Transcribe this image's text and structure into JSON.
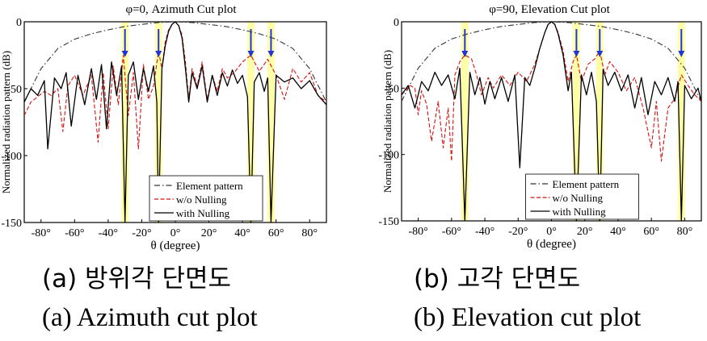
{
  "chart_data": [
    {
      "type": "line",
      "title": "φ=0, Azimuth Cut plot",
      "ylabel": "Normalized radiation pattern (dB)",
      "xlabel": "θ (degree)",
      "xlim": [
        -90,
        90
      ],
      "ylim": [
        -150,
        0
      ],
      "xticks": [
        "-80°",
        "-60°",
        "-40°",
        "-20°",
        "0°",
        "20°",
        "40°",
        "60°",
        "80°"
      ],
      "xtick_values": [
        -80,
        -60,
        -40,
        -20,
        0,
        20,
        40,
        60,
        80
      ],
      "yticks": [
        "0",
        "-50",
        "-100",
        "-150"
      ],
      "ytick_values": [
        0,
        -50,
        -100,
        -150
      ],
      "legend_position": "bottom-center",
      "nulling_angles": [
        -30,
        -10,
        45,
        57
      ],
      "series": [
        {
          "name": "Element pattern",
          "color": "#333333",
          "style": "dashdot",
          "x": [
            -90,
            -80,
            -70,
            -60,
            -50,
            -40,
            -30,
            -20,
            -10,
            0,
            10,
            20,
            30,
            40,
            50,
            60,
            70,
            80,
            90
          ],
          "values": [
            -60,
            -35,
            -20,
            -13,
            -9,
            -6,
            -3.5,
            -2,
            -0.6,
            0,
            -0.6,
            -2,
            -3.5,
            -6,
            -9,
            -13,
            -20,
            -35,
            -60
          ]
        },
        {
          "name": "w/o Nulling",
          "color": "#dd1111",
          "style": "dashed",
          "x": [
            -90,
            -86,
            -82,
            -78,
            -74,
            -70,
            -67,
            -64,
            -60,
            -55,
            -50,
            -46,
            -43,
            -40,
            -37,
            -34,
            -31,
            -28,
            -25,
            -22,
            -19,
            -16,
            -13,
            -10,
            -8,
            -6,
            -4,
            -2,
            0,
            2,
            4,
            6,
            8,
            10,
            13,
            16,
            19,
            22,
            25,
            28,
            31,
            35,
            40,
            45,
            50,
            55,
            60,
            65,
            70,
            75,
            80,
            85,
            90
          ],
          "values": [
            -70,
            -60,
            -56,
            -52,
            -55,
            -50,
            -82,
            -48,
            -40,
            -55,
            -40,
            -90,
            -38,
            -80,
            -33,
            -62,
            -25,
            -70,
            -38,
            -95,
            -32,
            -58,
            -48,
            -22,
            -35,
            -15,
            -6,
            -2,
            0,
            -3,
            -10,
            -30,
            -58,
            -35,
            -48,
            -30,
            -58,
            -40,
            -52,
            -35,
            -42,
            -38,
            -30,
            -25,
            -37,
            -28,
            -40,
            -58,
            -35,
            -45,
            -38,
            -55,
            -60
          ]
        },
        {
          "name": "with Nulling",
          "color": "#000000",
          "style": "solid",
          "x": [
            -90,
            -86,
            -82,
            -78,
            -76,
            -72,
            -68,
            -65,
            -62,
            -58,
            -54,
            -50,
            -47,
            -44,
            -41,
            -38,
            -35,
            -32,
            -30,
            -28,
            -25,
            -22,
            -19,
            -16,
            -13,
            -11,
            -10,
            -8,
            -6,
            -4,
            -2,
            0,
            2,
            4,
            6,
            8,
            10,
            13,
            16,
            19,
            22,
            25,
            28,
            31,
            34,
            37,
            40,
            43,
            45,
            47,
            50,
            53,
            55,
            57,
            60,
            65,
            70,
            75,
            80,
            85,
            90
          ],
          "values": [
            -60,
            -50,
            -55,
            -44,
            -95,
            -42,
            -50,
            -38,
            -78,
            -40,
            -62,
            -35,
            -58,
            -32,
            -80,
            -30,
            -55,
            -33,
            -150,
            -40,
            -30,
            -58,
            -35,
            -52,
            -33,
            -60,
            -150,
            -35,
            -18,
            -7,
            -2,
            0,
            -3,
            -12,
            -35,
            -60,
            -38,
            -50,
            -33,
            -60,
            -40,
            -55,
            -38,
            -48,
            -36,
            -46,
            -40,
            -56,
            -150,
            -45,
            -38,
            -52,
            -42,
            -150,
            -40,
            -45,
            -42,
            -50,
            -44,
            -55,
            -62
          ]
        }
      ]
    },
    {
      "type": "line",
      "title": "φ=90, Elevation Cut plot",
      "ylabel": "Normalized radiation pattern (dB)",
      "xlabel": "θ (degree)",
      "xlim": [
        -90,
        90
      ],
      "ylim": [
        -150,
        0
      ],
      "xticks": [
        "-80°",
        "-60°",
        "-40°",
        "-20°",
        "0°",
        "20°",
        "40°",
        "60°",
        "80°"
      ],
      "xtick_values": [
        -80,
        -60,
        -40,
        -20,
        0,
        20,
        40,
        60,
        80
      ],
      "yticks": [
        "0",
        "-50",
        "-100",
        "-150"
      ],
      "ytick_values": [
        0,
        -50,
        -100,
        -150
      ],
      "legend_position": "bottom-center",
      "nulling_angles": [
        -52,
        15,
        29,
        78
      ],
      "series": [
        {
          "name": "Element pattern",
          "color": "#333333",
          "style": "dashdot",
          "x": [
            -90,
            -80,
            -70,
            -60,
            -50,
            -40,
            -30,
            -20,
            -10,
            0,
            10,
            20,
            30,
            40,
            50,
            60,
            70,
            80,
            90
          ],
          "values": [
            -60,
            -35,
            -20,
            -13,
            -9,
            -6,
            -3.5,
            -2,
            -0.6,
            0,
            -0.6,
            -2,
            -3.5,
            -6,
            -9,
            -13,
            -20,
            -35,
            -60
          ]
        },
        {
          "name": "w/o Nulling",
          "color": "#dd1111",
          "style": "dashed",
          "x": [
            -90,
            -85,
            -82,
            -80,
            -78,
            -75,
            -72,
            -68,
            -65,
            -62,
            -60,
            -58,
            -55,
            -52,
            -48,
            -45,
            -42,
            -38,
            -35,
            -30,
            -25,
            -20,
            -15,
            -10,
            -7,
            -4,
            -2,
            0,
            2,
            4,
            7,
            10,
            13,
            15,
            18,
            22,
            26,
            29,
            32,
            35,
            40,
            45,
            50,
            55,
            60,
            63,
            66,
            70,
            74,
            78,
            82,
            86,
            90
          ],
          "values": [
            -55,
            -48,
            -50,
            -70,
            -52,
            -62,
            -90,
            -60,
            -95,
            -65,
            -105,
            -40,
            -30,
            -25,
            -28,
            -40,
            -55,
            -42,
            -50,
            -40,
            -48,
            -38,
            -45,
            -32,
            -20,
            -8,
            -2,
            0,
            -2,
            -8,
            -22,
            -45,
            -30,
            -25,
            -45,
            -32,
            -28,
            -22,
            -40,
            -30,
            -38,
            -52,
            -42,
            -65,
            -95,
            -60,
            -105,
            -65,
            -58,
            -40,
            -48,
            -55,
            -60
          ]
        },
        {
          "name": "with Nulling",
          "color": "#000000",
          "style": "solid",
          "x": [
            -90,
            -86,
            -82,
            -78,
            -74,
            -70,
            -66,
            -62,
            -58,
            -55,
            -52,
            -49,
            -46,
            -43,
            -40,
            -37,
            -34,
            -30,
            -26,
            -22,
            -19,
            -16,
            -13,
            -10,
            -7,
            -4,
            -2,
            0,
            2,
            4,
            7,
            10,
            12,
            15,
            18,
            21,
            24,
            27,
            29,
            31,
            34,
            38,
            42,
            46,
            50,
            54,
            58,
            62,
            66,
            70,
            74,
            76,
            78,
            80,
            84,
            88,
            90
          ],
          "values": [
            -55,
            -48,
            -65,
            -45,
            -52,
            -38,
            -48,
            -40,
            -58,
            -35,
            -150,
            -38,
            -55,
            -42,
            -62,
            -45,
            -58,
            -42,
            -60,
            -40,
            -110,
            -42,
            -48,
            -35,
            -20,
            -8,
            -2,
            0,
            -2,
            -9,
            -25,
            -52,
            -38,
            -150,
            -40,
            -55,
            -38,
            -60,
            -150,
            -36,
            -48,
            -38,
            -52,
            -40,
            -65,
            -42,
            -70,
            -45,
            -55,
            -42,
            -60,
            -45,
            -150,
            -48,
            -58,
            -50,
            -60
          ]
        }
      ]
    }
  ],
  "captions": {
    "a_kr": "(a)  방위각  단면도",
    "a_en": "(a)  Azimuth  cut  plot",
    "b_kr": "(b)  고각  단면도",
    "b_en": "(b)  Elevation  cut  plot"
  },
  "colors": {
    "highlight": "#ffff99",
    "arrow": "#2233dd",
    "element": "#333333",
    "wo_nulling": "#dd1111",
    "with_nulling": "#000000"
  }
}
